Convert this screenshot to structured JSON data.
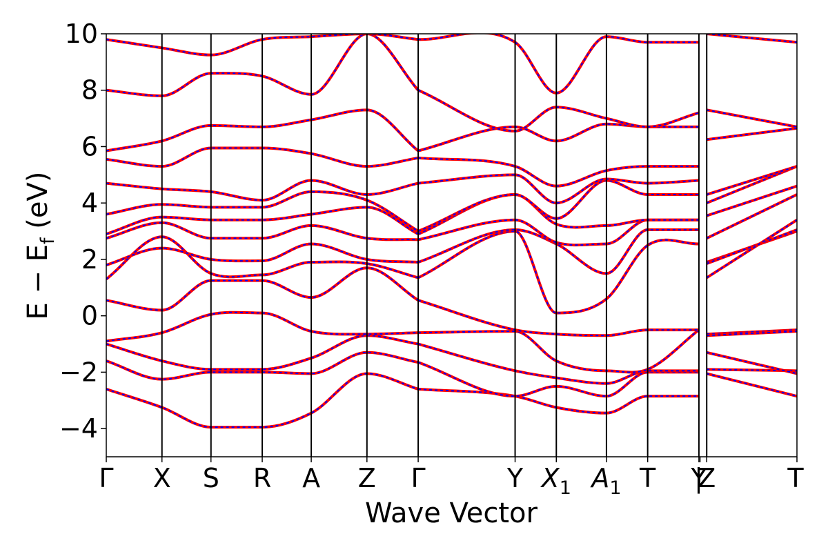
{
  "chart_data": {
    "type": "line",
    "title": "",
    "xlabel": "Wave Vector",
    "ylabel_parts": {
      "main": "E − E",
      "sub": "f",
      "unit": " (eV)"
    },
    "ylim": [
      -5,
      10
    ],
    "yticks": [
      -4,
      -2,
      0,
      2,
      4,
      6,
      8,
      10
    ],
    "ytick_labels": [
      "−4",
      "−2",
      "0",
      "2",
      "4",
      "6",
      "8",
      "10"
    ],
    "kpoints": [
      {
        "label": "Γ",
        "sub": "",
        "x": 0.0
      },
      {
        "label": "X",
        "sub": "",
        "x": 0.5
      },
      {
        "label": "S",
        "sub": "",
        "x": 0.94
      },
      {
        "label": "R",
        "sub": "",
        "x": 1.4
      },
      {
        "label": "A",
        "sub": "",
        "x": 1.84
      },
      {
        "label": "Z",
        "sub": "",
        "x": 2.34
      },
      {
        "label": "Γ",
        "sub": "",
        "x": 2.8
      },
      {
        "label": "Y",
        "sub": "",
        "x": 3.67
      },
      {
        "label": "X",
        "sub": "1",
        "x": 4.04
      },
      {
        "label": "A",
        "sub": "1",
        "x": 4.49
      },
      {
        "label": "T",
        "sub": "",
        "x": 4.86
      },
      {
        "label": "Y",
        "sub": "",
        "x": 5.32
      },
      {
        "label": "|",
        "sub": "",
        "x": 5.33
      },
      {
        "label": "Z",
        "sub": "",
        "x": 5.39
      },
      {
        "label": "T",
        "sub": "",
        "x": 6.2
      }
    ],
    "xlim": [
      0,
      6.2
    ],
    "gap": [
      5.33,
      5.33
    ],
    "series_styles": [
      {
        "color": "#ff0000",
        "style": "solid"
      },
      {
        "color": "#0000ff",
        "style": "dashed"
      }
    ],
    "segments": [
      {
        "x": [
          0,
          0.5,
          0.94,
          1.4,
          1.84,
          2.34,
          2.8
        ],
        "bands": [
          [
            -2.6,
            -3.25,
            -3.95,
            -3.95,
            -3.45,
            -2.05,
            -2.6
          ],
          [
            -1.6,
            -2.25,
            -2.0,
            -2.0,
            -2.05,
            -1.3,
            -1.65
          ],
          [
            -1.0,
            -1.6,
            -1.9,
            -1.9,
            -1.5,
            -0.7,
            -1.0
          ],
          [
            -0.9,
            -0.6,
            0.05,
            0.1,
            -0.55,
            -0.65,
            -0.6
          ],
          [
            0.55,
            0.2,
            1.25,
            1.25,
            0.65,
            1.7,
            0.55
          ],
          [
            1.3,
            2.8,
            1.5,
            1.45,
            1.9,
            1.85,
            1.35
          ],
          [
            1.8,
            2.4,
            2.0,
            1.95,
            2.55,
            2.0,
            1.9
          ],
          [
            2.75,
            3.3,
            2.75,
            2.75,
            3.2,
            2.75,
            2.7
          ],
          [
            2.9,
            3.5,
            3.4,
            3.4,
            3.6,
            3.85,
            2.9
          ],
          [
            3.6,
            3.95,
            3.85,
            3.85,
            4.4,
            4.1,
            3.0
          ],
          [
            4.7,
            4.5,
            4.4,
            4.1,
            4.8,
            4.3,
            4.7
          ],
          [
            5.55,
            5.3,
            5.95,
            5.95,
            5.75,
            5.3,
            5.6
          ],
          [
            5.85,
            6.2,
            6.75,
            6.7,
            6.95,
            7.3,
            5.85
          ],
          [
            8.0,
            7.8,
            8.6,
            8.5,
            7.85,
            10.0,
            8.0
          ],
          [
            9.8,
            9.5,
            9.25,
            9.8,
            9.9,
            10.0,
            9.8
          ]
        ]
      },
      {
        "x": [
          2.8,
          3.67,
          4.04,
          4.49,
          4.86,
          5.32
        ],
        "bands": [
          [
            -2.6,
            -2.85,
            -3.25,
            -3.45,
            -2.85,
            -2.85
          ],
          [
            -1.65,
            -2.85,
            -2.5,
            -2.85,
            -2.0,
            -2.0
          ],
          [
            -1.0,
            -1.95,
            -2.2,
            -2.4,
            -1.95,
            -1.95
          ],
          [
            -0.6,
            -0.55,
            -1.6,
            -1.95,
            -1.9,
            -0.5
          ],
          [
            0.55,
            -0.5,
            -0.65,
            -0.7,
            -0.5,
            -0.5
          ],
          [
            1.35,
            3.0,
            0.1,
            0.6,
            2.5,
            2.55
          ],
          [
            1.9,
            3.05,
            2.55,
            1.5,
            3.05,
            3.05
          ],
          [
            2.7,
            3.4,
            2.6,
            2.55,
            3.4,
            3.4
          ],
          [
            2.9,
            4.3,
            3.25,
            3.2,
            3.4,
            3.4
          ],
          [
            3.0,
            4.3,
            3.45,
            4.8,
            4.3,
            4.3
          ],
          [
            4.7,
            5.0,
            4.0,
            4.85,
            4.7,
            4.8
          ],
          [
            5.6,
            5.3,
            4.6,
            5.15,
            5.3,
            5.3
          ],
          [
            5.85,
            6.7,
            6.2,
            6.8,
            6.7,
            6.7
          ],
          [
            8.0,
            6.55,
            7.4,
            7.0,
            6.7,
            7.2
          ],
          [
            9.8,
            9.7,
            7.9,
            9.9,
            9.7,
            9.7
          ]
        ]
      },
      {
        "x": [
          5.39,
          6.2
        ],
        "bands": [
          [
            -2.05,
            -2.85
          ],
          [
            -1.9,
            -1.95
          ],
          [
            -1.3,
            -2.05
          ],
          [
            -0.65,
            -0.5
          ],
          [
            -0.7,
            -0.55
          ],
          [
            1.9,
            3.0
          ],
          [
            1.85,
            3.05
          ],
          [
            1.35,
            3.4
          ],
          [
            2.75,
            4.3
          ],
          [
            3.55,
            4.6
          ],
          [
            4.0,
            5.3
          ],
          [
            4.3,
            5.3
          ],
          [
            6.25,
            6.65
          ],
          [
            7.3,
            6.7
          ],
          [
            10.0,
            9.7
          ]
        ]
      }
    ]
  }
}
